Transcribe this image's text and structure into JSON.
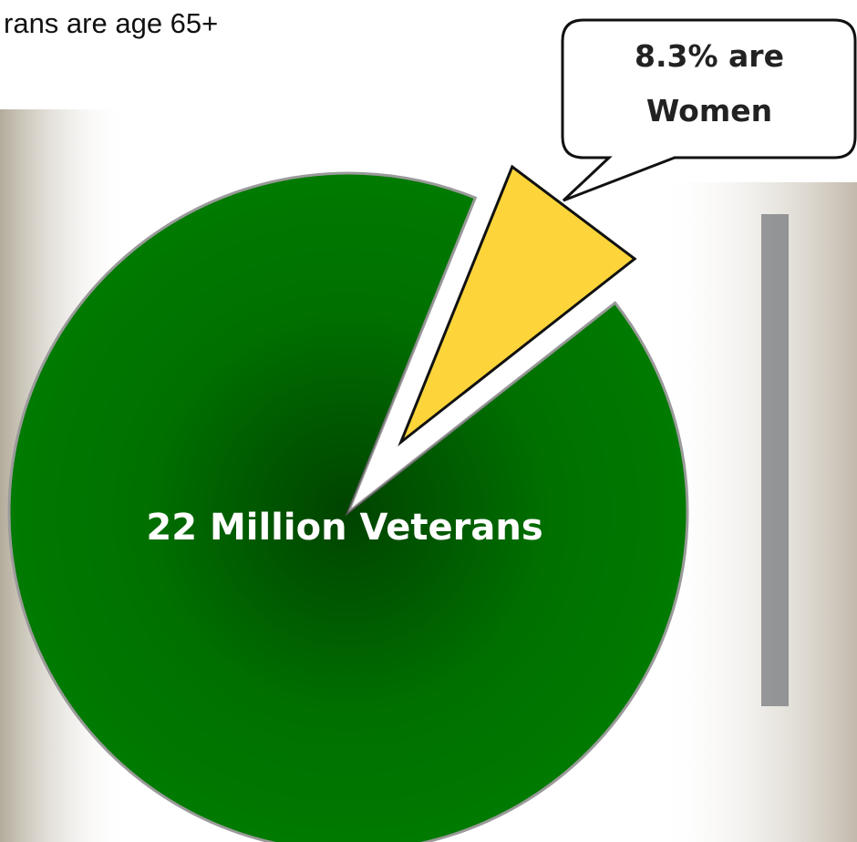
{
  "header": {
    "text": "rans are age 65+"
  },
  "chart_data": {
    "type": "pie",
    "values": [
      91.7,
      8.3
    ],
    "colors": [
      "#007a00",
      "#fdd53b"
    ],
    "explode": [
      false,
      true
    ],
    "annotations": {
      "center": "22 Million Veterans",
      "callout": [
        "8.3% are",
        "Women"
      ]
    }
  }
}
